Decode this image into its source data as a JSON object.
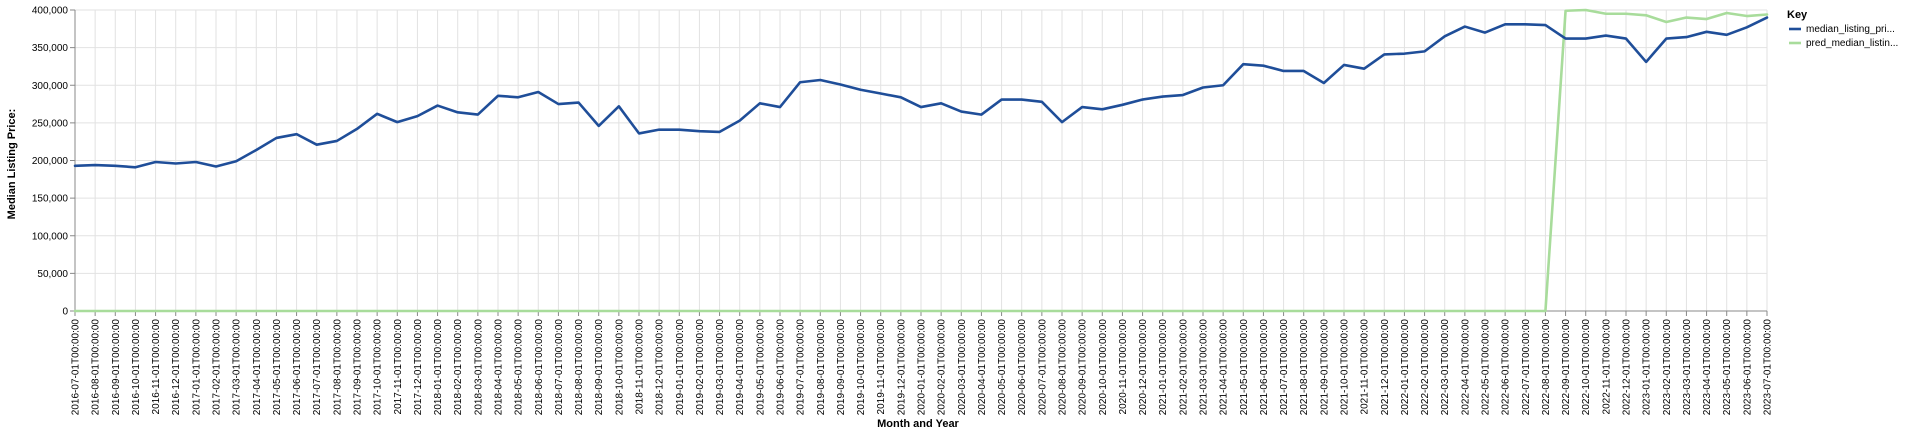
{
  "chart_data": {
    "type": "line",
    "xlabel": "Month and Year",
    "ylabel": "Median Listing Price:",
    "ylim": [
      0,
      400000
    ],
    "yticks": [
      "0",
      "50,000",
      "100,000",
      "150,000",
      "200,000",
      "250,000",
      "300,000",
      "350,000",
      "400,000"
    ],
    "grid": true,
    "legend_position": "right",
    "legend_title": "Key",
    "x": [
      "2016-07-01T00:00:00",
      "2016-08-01T00:00:00",
      "2016-09-01T00:00:00",
      "2016-10-01T00:00:00",
      "2016-11-01T00:00:00",
      "2016-12-01T00:00:00",
      "2017-01-01T00:00:00",
      "2017-02-01T00:00:00",
      "2017-03-01T00:00:00",
      "2017-04-01T00:00:00",
      "2017-05-01T00:00:00",
      "2017-06-01T00:00:00",
      "2017-07-01T00:00:00",
      "2017-08-01T00:00:00",
      "2017-09-01T00:00:00",
      "2017-10-01T00:00:00",
      "2017-11-01T00:00:00",
      "2017-12-01T00:00:00",
      "2018-01-01T00:00:00",
      "2018-02-01T00:00:00",
      "2018-03-01T00:00:00",
      "2018-04-01T00:00:00",
      "2018-05-01T00:00:00",
      "2018-06-01T00:00:00",
      "2018-07-01T00:00:00",
      "2018-08-01T00:00:00",
      "2018-09-01T00:00:00",
      "2018-10-01T00:00:00",
      "2018-11-01T00:00:00",
      "2018-12-01T00:00:00",
      "2019-01-01T00:00:00",
      "2019-02-01T00:00:00",
      "2019-03-01T00:00:00",
      "2019-04-01T00:00:00",
      "2019-05-01T00:00:00",
      "2019-06-01T00:00:00",
      "2019-07-01T00:00:00",
      "2019-08-01T00:00:00",
      "2019-09-01T00:00:00",
      "2019-10-01T00:00:00",
      "2019-11-01T00:00:00",
      "2019-12-01T00:00:00",
      "2020-01-01T00:00:00",
      "2020-02-01T00:00:00",
      "2020-03-01T00:00:00",
      "2020-04-01T00:00:00",
      "2020-05-01T00:00:00",
      "2020-06-01T00:00:00",
      "2020-07-01T00:00:00",
      "2020-08-01T00:00:00",
      "2020-09-01T00:00:00",
      "2020-10-01T00:00:00",
      "2020-11-01T00:00:00",
      "2020-12-01T00:00:00",
      "2021-01-01T00:00:00",
      "2021-02-01T00:00:00",
      "2021-03-01T00:00:00",
      "2021-04-01T00:00:00",
      "2021-05-01T00:00:00",
      "2021-06-01T00:00:00",
      "2021-07-01T00:00:00",
      "2021-08-01T00:00:00",
      "2021-09-01T00:00:00",
      "2021-10-01T00:00:00",
      "2021-11-01T00:00:00",
      "2021-12-01T00:00:00",
      "2022-01-01T00:00:00",
      "2022-02-01T00:00:00",
      "2022-03-01T00:00:00",
      "2022-04-01T00:00:00",
      "2022-05-01T00:00:00",
      "2022-06-01T00:00:00",
      "2022-07-01T00:00:00",
      "2022-08-01T00:00:00",
      "2022-09-01T00:00:00",
      "2022-10-01T00:00:00",
      "2022-11-01T00:00:00",
      "2022-12-01T00:00:00",
      "2023-01-01T00:00:00",
      "2023-02-01T00:00:00",
      "2023-03-01T00:00:00",
      "2023-04-01T00:00:00",
      "2023-05-01T00:00:00",
      "2023-06-01T00:00:00",
      "2023-07-01T00:00:00"
    ],
    "series": [
      {
        "name": "median_listing_pri...",
        "color": "#1f4e99",
        "values": [
          193000,
          194000,
          193000,
          191000,
          198000,
          196000,
          198000,
          192000,
          199000,
          214000,
          230000,
          235000,
          221000,
          226000,
          242000,
          262000,
          251000,
          259000,
          273000,
          264000,
          261000,
          286000,
          284000,
          291000,
          275000,
          277000,
          246000,
          272000,
          236000,
          241000,
          241000,
          239000,
          238000,
          253000,
          276000,
          271000,
          304000,
          307000,
          301000,
          294000,
          289000,
          284000,
          271000,
          276000,
          265000,
          261000,
          281000,
          281000,
          278000,
          251000,
          271000,
          268000,
          274000,
          281000,
          285000,
          287000,
          297000,
          300000,
          328000,
          326000,
          319000,
          319000,
          303000,
          327000,
          322000,
          341000,
          342000,
          345000,
          365000,
          378000,
          370000,
          381000,
          381000,
          380000,
          362000,
          362000,
          366000,
          362000,
          331000,
          362000,
          364000,
          371000,
          367000,
          377000,
          390000
        ]
      },
      {
        "name": "pred_median_listin...",
        "color": "#a8dc9b",
        "values": [
          0,
          0,
          0,
          0,
          0,
          0,
          0,
          0,
          0,
          0,
          0,
          0,
          0,
          0,
          0,
          0,
          0,
          0,
          0,
          0,
          0,
          0,
          0,
          0,
          0,
          0,
          0,
          0,
          0,
          0,
          0,
          0,
          0,
          0,
          0,
          0,
          0,
          0,
          0,
          0,
          0,
          0,
          0,
          0,
          0,
          0,
          0,
          0,
          0,
          0,
          0,
          0,
          0,
          0,
          0,
          0,
          0,
          0,
          0,
          0,
          0,
          0,
          0,
          0,
          0,
          0,
          0,
          0,
          0,
          0,
          0,
          0,
          0,
          0,
          399000,
          400000,
          395000,
          395000,
          393000,
          384000,
          390000,
          388000,
          396000,
          392000,
          394000
        ]
      }
    ]
  }
}
